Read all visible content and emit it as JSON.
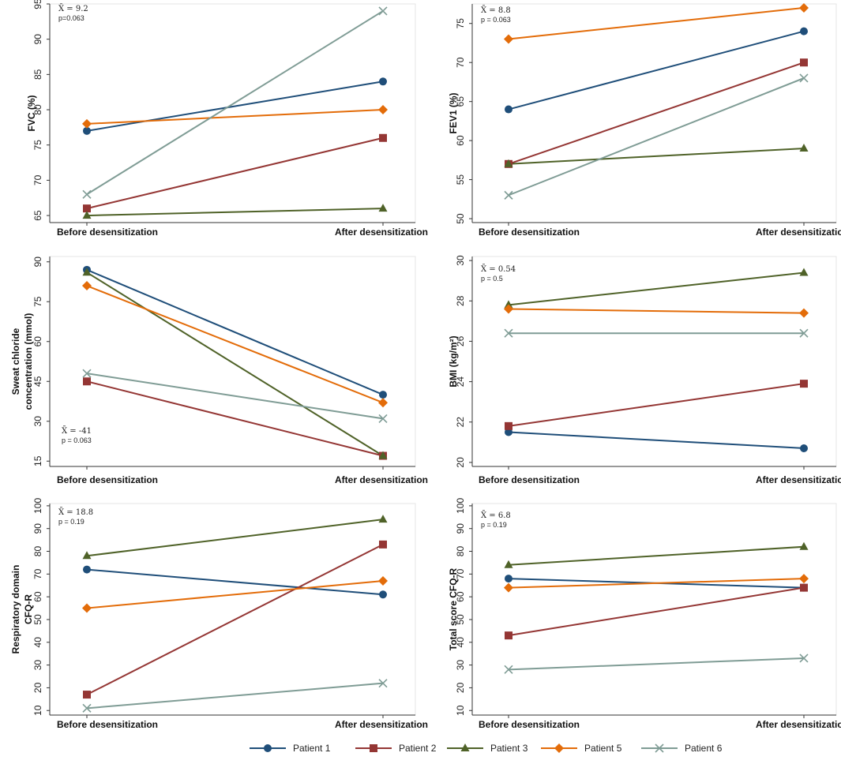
{
  "chart_data": [
    {
      "type": "line",
      "ylabel": [
        "FVC (%)"
      ],
      "categories": [
        "Before desensitization",
        "After desensitization"
      ],
      "yticks": [
        65,
        70,
        75,
        80,
        85,
        90,
        95
      ],
      "ylim": [
        64,
        95
      ],
      "stat": {
        "mean": "9.2",
        "p": "p=0.063"
      },
      "series": [
        {
          "name": "Patient 1",
          "values": [
            77,
            84
          ]
        },
        {
          "name": "Patient 2",
          "values": [
            66,
            76
          ]
        },
        {
          "name": "Patient 3",
          "values": [
            65,
            66
          ]
        },
        {
          "name": "Patient 5",
          "values": [
            78,
            80
          ]
        },
        {
          "name": "Patient 6",
          "values": [
            68,
            94
          ]
        }
      ]
    },
    {
      "type": "line",
      "ylabel": [
        "FEV1 (%)"
      ],
      "categories": [
        "Before desensitization",
        "After desensitization"
      ],
      "yticks": [
        50,
        55,
        60,
        65,
        70,
        75
      ],
      "ylim": [
        49.5,
        77.5
      ],
      "stat": {
        "mean": "8.8",
        "p": "p = 0.063"
      },
      "series": [
        {
          "name": "Patient 1",
          "values": [
            64,
            74
          ]
        },
        {
          "name": "Patient 2",
          "values": [
            57,
            70
          ]
        },
        {
          "name": "Patient 3",
          "values": [
            57,
            59
          ]
        },
        {
          "name": "Patient 5",
          "values": [
            73,
            77
          ]
        },
        {
          "name": "Patient 6",
          "values": [
            53,
            68
          ]
        }
      ]
    },
    {
      "type": "line",
      "ylabel": [
        "Sweat chloride",
        "concentration (mmol)"
      ],
      "categories": [
        "Before desensitization",
        "After desensitization"
      ],
      "yticks": [
        15,
        30,
        45,
        60,
        75,
        90
      ],
      "ylim": [
        13,
        92
      ],
      "stat": {
        "mean": "-41",
        "p": "p = 0.063"
      },
      "series": [
        {
          "name": "Patient 1",
          "values": [
            87,
            40
          ]
        },
        {
          "name": "Patient 2",
          "values": [
            45,
            17
          ]
        },
        {
          "name": "Patient 3",
          "values": [
            86,
            17
          ]
        },
        {
          "name": "Patient 5",
          "values": [
            81,
            37
          ]
        },
        {
          "name": "Patient 6",
          "values": [
            48,
            31
          ]
        }
      ]
    },
    {
      "type": "line",
      "ylabel": [
        "BMI (kg/m²)"
      ],
      "categories": [
        "Before desensitization",
        "After desensitization"
      ],
      "yticks": [
        20,
        22,
        24,
        26,
        28,
        30
      ],
      "ylim": [
        19.8,
        30.2
      ],
      "stat": {
        "mean": "0.54",
        "p": "p = 0.5"
      },
      "series": [
        {
          "name": "Patient 1",
          "values": [
            21.5,
            20.7
          ]
        },
        {
          "name": "Patient 2",
          "values": [
            21.8,
            23.9
          ]
        },
        {
          "name": "Patient 3",
          "values": [
            27.8,
            29.4
          ]
        },
        {
          "name": "Patient 5",
          "values": [
            27.6,
            27.4
          ]
        },
        {
          "name": "Patient 6",
          "values": [
            26.4,
            26.4
          ]
        }
      ]
    },
    {
      "type": "line",
      "ylabel": [
        "Respiratory domain",
        "CFQ-R"
      ],
      "categories": [
        "Before desensitization",
        "After desensitization"
      ],
      "yticks": [
        10,
        20,
        30,
        40,
        50,
        60,
        70,
        80,
        90,
        100
      ],
      "ylim": [
        8,
        101
      ],
      "stat": {
        "mean": "18.8",
        "p": "p = 0.19"
      },
      "series": [
        {
          "name": "Patient 1",
          "values": [
            72,
            61
          ]
        },
        {
          "name": "Patient 2",
          "values": [
            17,
            83
          ]
        },
        {
          "name": "Patient 3",
          "values": [
            78,
            94
          ]
        },
        {
          "name": "Patient 5",
          "values": [
            55,
            67
          ]
        },
        {
          "name": "Patient 6",
          "values": [
            11,
            22
          ]
        }
      ]
    },
    {
      "type": "line",
      "ylabel": [
        "Total score CFQ-R"
      ],
      "categories": [
        "Before desensitization",
        "After desensitization"
      ],
      "yticks": [
        10,
        20,
        30,
        40,
        50,
        60,
        70,
        80,
        90,
        100
      ],
      "ylim": [
        8,
        101
      ],
      "stat": {
        "mean": "6.8",
        "p": "p = 0.19"
      },
      "series": [
        {
          "name": "Patient 1",
          "values": [
            68,
            64
          ]
        },
        {
          "name": "Patient 2",
          "values": [
            43,
            64
          ]
        },
        {
          "name": "Patient 3",
          "values": [
            74,
            82
          ]
        },
        {
          "name": "Patient 5",
          "values": [
            64,
            68
          ]
        },
        {
          "name": "Patient 6",
          "values": [
            28,
            33
          ]
        }
      ]
    }
  ],
  "legend": [
    {
      "name": "Patient 1",
      "color": "#1f4e79",
      "marker": "circle"
    },
    {
      "name": "Patient 2",
      "color": "#943634",
      "marker": "square"
    },
    {
      "name": "Patient 3",
      "color": "#4f6228",
      "marker": "triangle"
    },
    {
      "name": "Patient 5",
      "color": "#e36c09",
      "marker": "diamond"
    },
    {
      "name": "Patient 6",
      "color": "#7f9c95",
      "marker": "x"
    }
  ],
  "mean_symbol": "X̄ ="
}
